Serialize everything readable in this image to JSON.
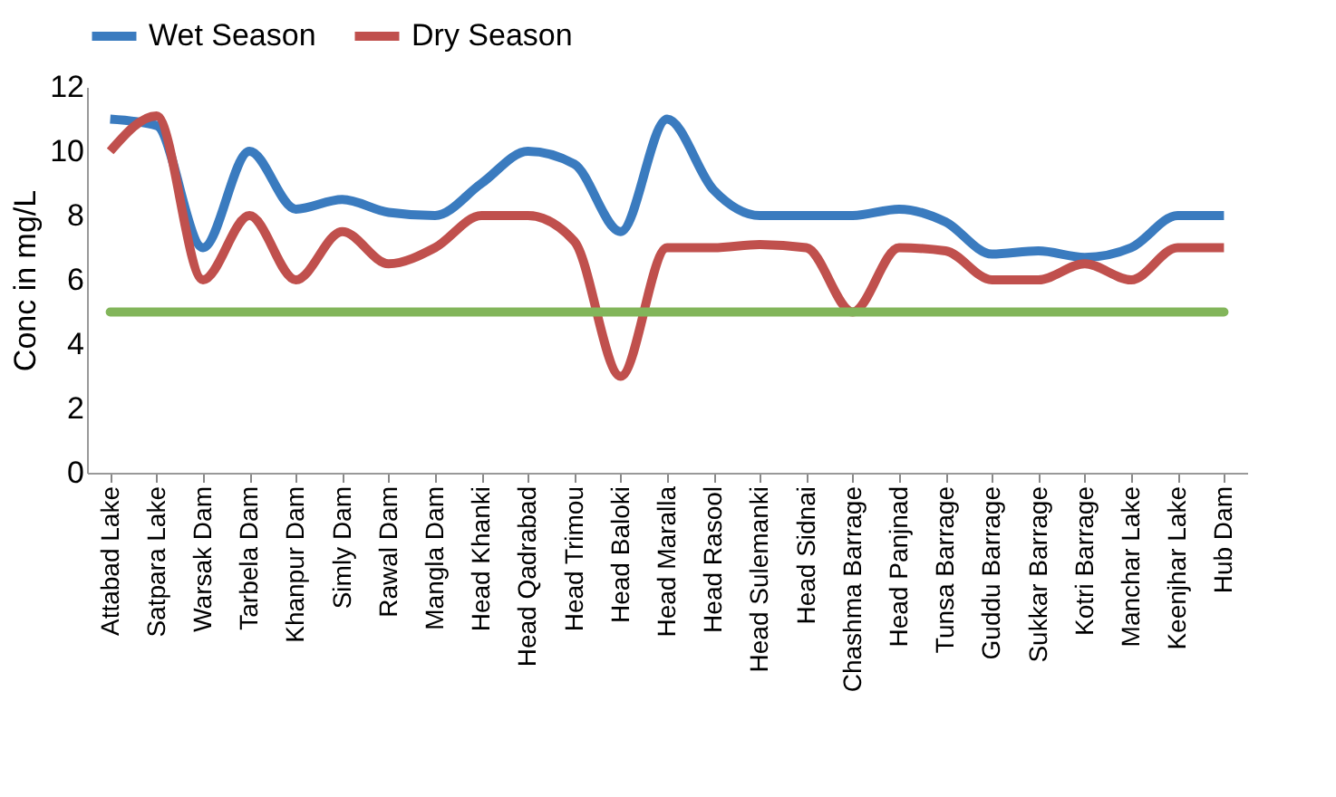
{
  "chart_data": {
    "type": "line",
    "ylabel": "Conc in mg/L",
    "categories": [
      "Attabad Lake",
      "Satpara Lake",
      "Warsak Dam",
      "Tarbela Dam",
      "Khanpur Dam",
      "Simly Dam",
      "Rawal Dam",
      "Mangla Dam",
      "Head Khanki",
      "Head Qadrabad",
      "Head Trimou",
      "Head Baloki",
      "Head Maralla",
      "Head Rasool",
      "Head Sulemanki",
      "Head Sidnai",
      "Chashma Barrage",
      "Head Panjnad",
      "Tunsa Barrage",
      "Guddu Barrage",
      "Sukkar Barrage",
      "Kotri Barrage",
      "Manchar Lake",
      "Keenjhar Lake",
      "Hub Dam"
    ],
    "series": [
      {
        "name": "Wet Season",
        "color": "#3a7bbf",
        "values": [
          11,
          10.8,
          7,
          10,
          8.2,
          8.5,
          8.1,
          8,
          9,
          10,
          9.6,
          7.5,
          11,
          8.8,
          8,
          8,
          8,
          8.2,
          7.8,
          6.8,
          6.9,
          6.7,
          7,
          8,
          8
        ]
      },
      {
        "name": "Dry Season",
        "color": "#c0504d",
        "values": [
          10,
          11.1,
          6,
          8,
          6,
          7.5,
          6.5,
          7,
          8,
          8,
          7.2,
          3,
          7,
          7,
          7.1,
          7,
          5,
          7,
          6.9,
          6,
          6,
          6.5,
          6,
          7,
          7
        ]
      }
    ],
    "ref_lines": [
      {
        "axis": "y",
        "value": 5,
        "color": "#82b55a"
      }
    ],
    "ylim": [
      0,
      12
    ],
    "yticks": [
      0,
      2,
      4,
      6,
      8,
      10,
      12
    ],
    "grid": false,
    "legend": "top",
    "marker": "none",
    "line_style": "solid"
  }
}
